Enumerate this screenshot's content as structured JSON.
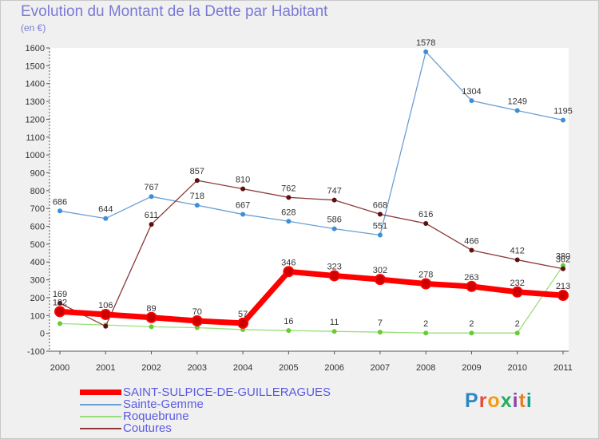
{
  "header": {
    "title": "Evolution du Montant de la Dette par Habitant",
    "unit": "(en €)"
  },
  "logo": {
    "text": "Proxiti",
    "colors": [
      "#2e86c1",
      "#e74c3c",
      "#f39c12",
      "#27ae60",
      "#8e44ad",
      "#e67e22",
      "#16a085"
    ]
  },
  "chart_data": {
    "type": "line",
    "title": "Evolution du Montant de la Dette par Habitant",
    "xlabel": "",
    "ylabel": "(en €)",
    "categories": [
      "2000",
      "2001",
      "2002",
      "2003",
      "2004",
      "2005",
      "2006",
      "2007",
      "2008",
      "2009",
      "2010",
      "2011"
    ],
    "ylim": [
      -100,
      1600
    ],
    "yticks": [
      -100,
      0,
      100,
      200,
      300,
      400,
      500,
      600,
      700,
      800,
      900,
      1000,
      1100,
      1200,
      1300,
      1400,
      1500,
      1600
    ],
    "grid": false,
    "legend_position": "bottom-left",
    "series": [
      {
        "name": "SAINT-SULPICE-DE-GUILLERAGUES",
        "color": "#ff0000",
        "marker": "#cc0000",
        "width": 7,
        "values": [
          122,
          106,
          89,
          70,
          57,
          346,
          323,
          302,
          278,
          263,
          232,
          213
        ],
        "labels": [
          "122",
          "106",
          "89",
          "70",
          "57",
          "346",
          "323",
          "302",
          "278",
          "263",
          "232",
          "213"
        ]
      },
      {
        "name": "Sainte-Gemme",
        "color": "#6a9fd4",
        "marker": "#3b8fd9",
        "width": 1.3,
        "values": [
          686,
          644,
          767,
          718,
          667,
          628,
          586,
          551,
          1578,
          1304,
          1249,
          1195
        ],
        "labels": [
          "686",
          "644",
          "767",
          "718",
          "667",
          "628",
          "586",
          "551",
          "1578",
          "1304",
          "1249",
          "1195"
        ]
      },
      {
        "name": "Roquebrune",
        "color": "#99e07a",
        "marker": "#66cc33",
        "width": 1.3,
        "values": [
          55,
          47,
          37,
          32,
          21,
          16,
          11,
          7,
          2,
          2,
          2,
          380
        ],
        "labels": [
          "",
          "",
          "",
          "",
          "",
          "16",
          "11",
          "7",
          "2",
          "2",
          "2",
          "380"
        ]
      },
      {
        "name": "Coutures",
        "color": "#8b3a3a",
        "marker": "#5c1010",
        "width": 1.3,
        "values": [
          169,
          40,
          611,
          857,
          810,
          762,
          747,
          668,
          616,
          466,
          412,
          362
        ],
        "labels": [
          "169",
          "",
          "611",
          "857",
          "810",
          "762",
          "747",
          "668",
          "616",
          "466",
          "412",
          "362"
        ]
      }
    ]
  }
}
